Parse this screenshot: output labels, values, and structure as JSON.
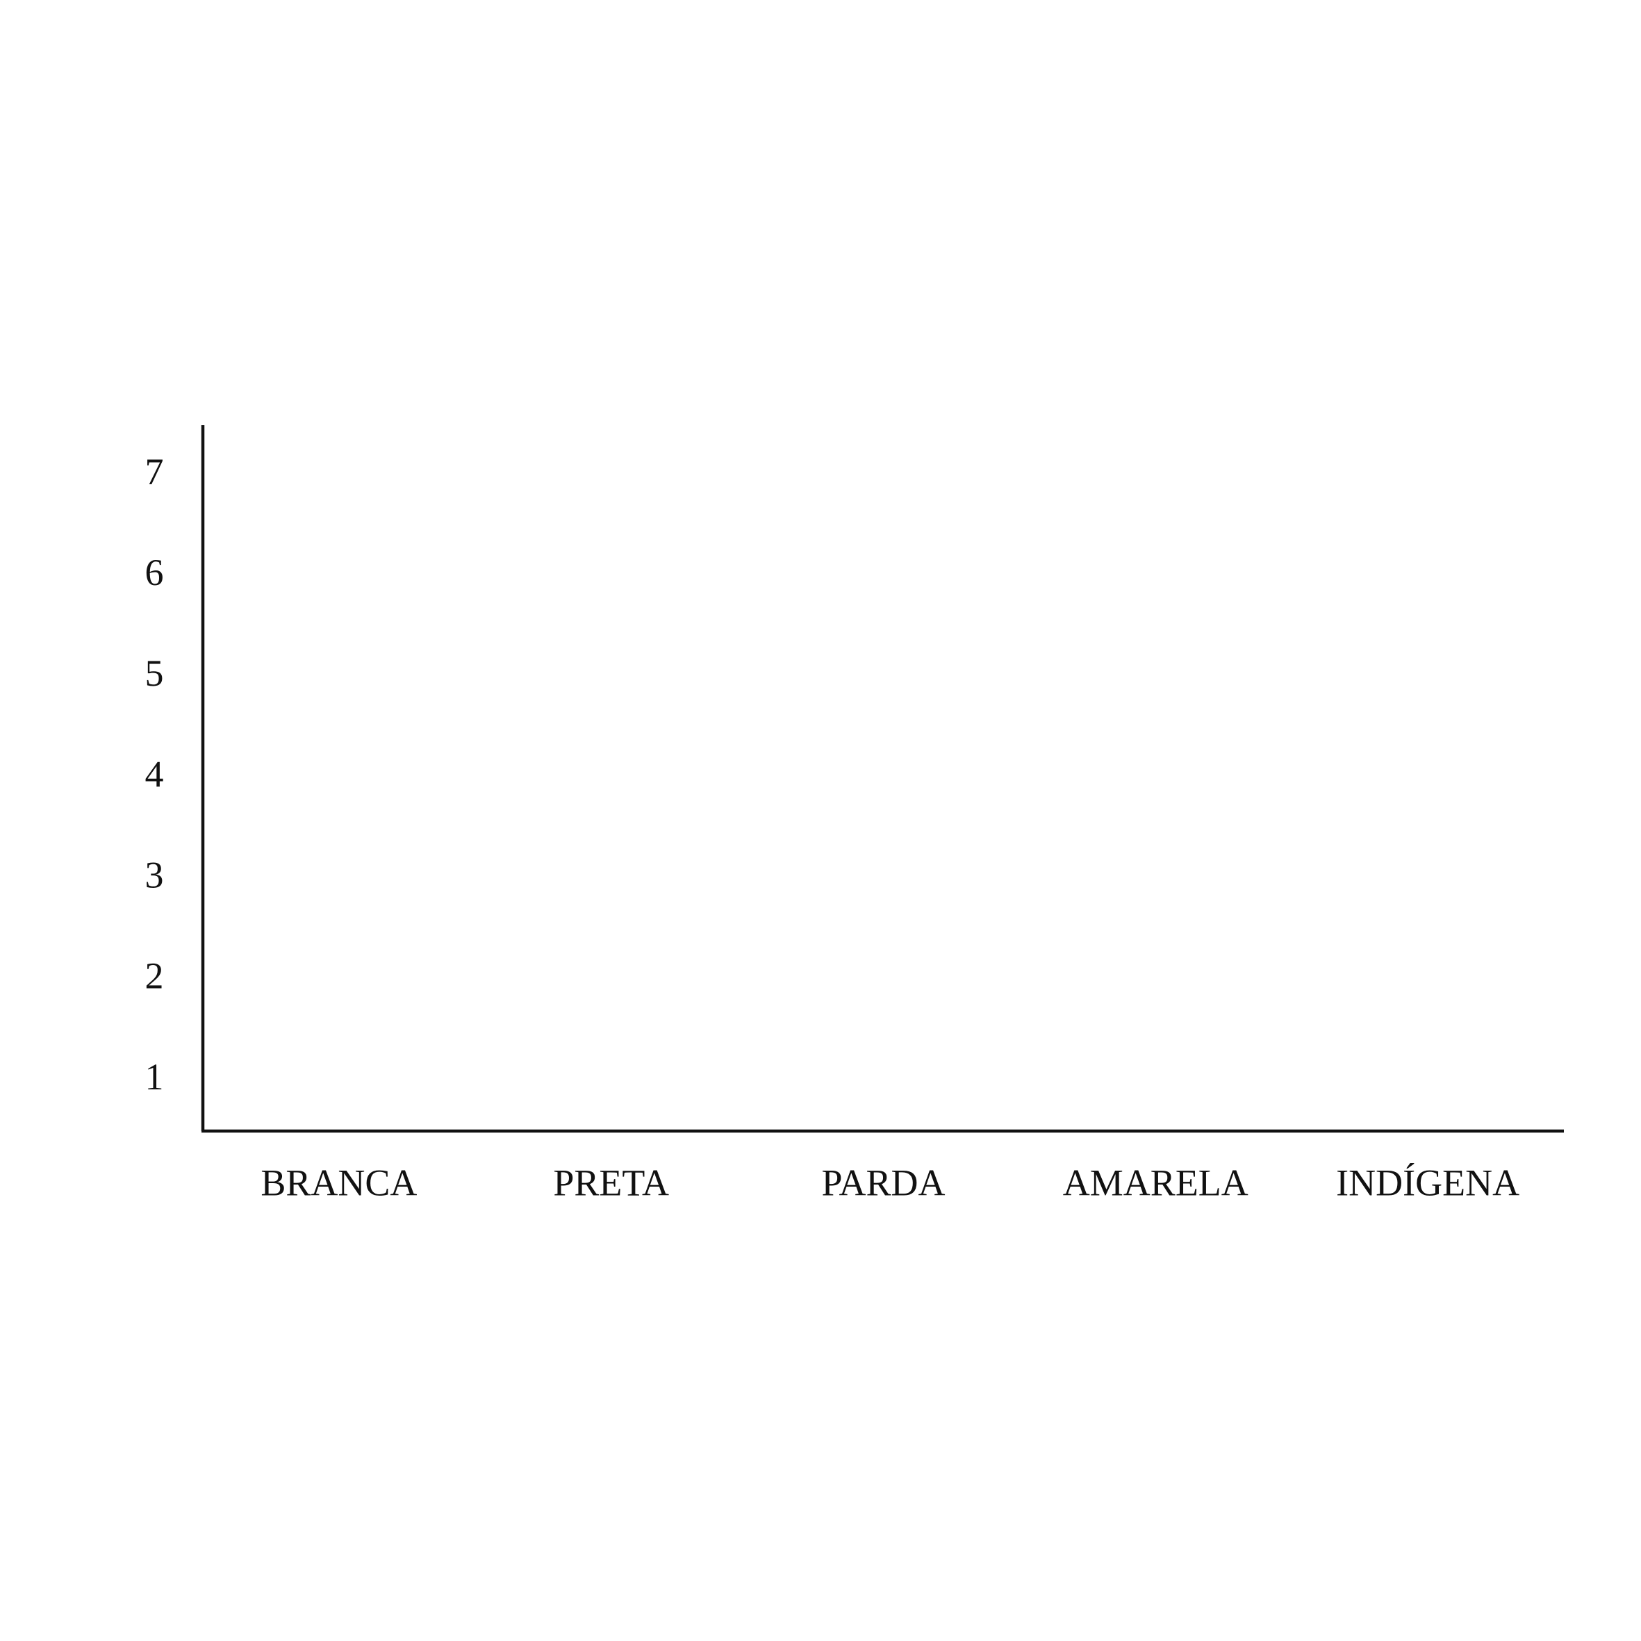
{
  "chart_data": {
    "type": "bar",
    "categories": [
      "BRANCA",
      "PRETA",
      "PARDA",
      "AMARELA",
      "INDÍGENA"
    ],
    "ylim": [
      0.5,
      7.5
    ],
    "yticks": [
      1,
      2,
      3,
      4,
      5,
      6,
      7
    ],
    "grid": false
  }
}
